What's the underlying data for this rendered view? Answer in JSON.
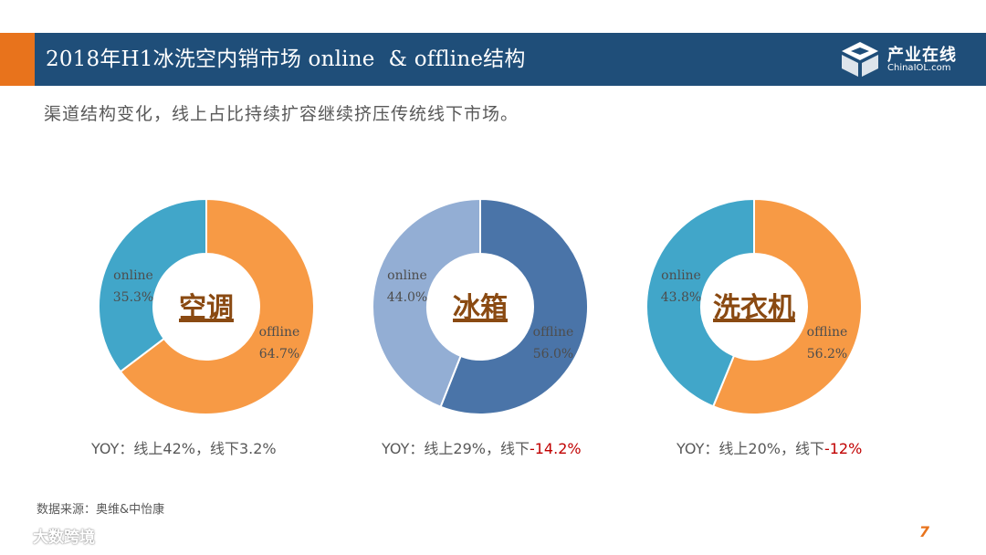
{
  "header": {
    "title": "2018年H1冰洗空内销市场 online  & offline结构",
    "logo_text_cn": "产业在线",
    "logo_text_en": "ChinaIOL.com"
  },
  "subtitle": "渠道结构变化，线上占比持续扩容继续挤压传统线下市场。",
  "colors": {
    "header": "#1f4e79",
    "accent": "#e8731c",
    "negative": "#c00000"
  },
  "chart_data": [
    {
      "type": "pie",
      "donut": true,
      "center_label": "空调",
      "slices": [
        {
          "label": "online",
          "value": 35.3,
          "display": "35.3%",
          "color": "#41a6c9"
        },
        {
          "label": "offline",
          "value": 64.7,
          "display": "64.7%",
          "color": "#f79a45"
        }
      ],
      "yoy": {
        "prefix": "YOY：线上42%，线下",
        "value": "3.2%",
        "negative": false
      }
    },
    {
      "type": "pie",
      "donut": true,
      "center_label": "冰箱",
      "slices": [
        {
          "label": "online",
          "value": 44.0,
          "display": "44.0%",
          "color": "#93aed4"
        },
        {
          "label": "offline",
          "value": 56.0,
          "display": "56.0%",
          "color": "#4a74a8"
        }
      ],
      "yoy": {
        "prefix": "YOY：线上29%，线下",
        "value": "-14.2%",
        "negative": true
      }
    },
    {
      "type": "pie",
      "donut": true,
      "center_label": "洗衣机",
      "slices": [
        {
          "label": "online",
          "value": 43.8,
          "display": "43.8%",
          "color": "#41a6c9"
        },
        {
          "label": "offline",
          "value": 56.2,
          "display": "56.2%",
          "color": "#f79a45"
        }
      ],
      "yoy": {
        "prefix": "YOY：线上20%，线下",
        "value": "-12%",
        "negative": true
      }
    }
  ],
  "footer": {
    "source": "数据来源：奥维&中怡康",
    "page_number": "7",
    "watermark": "大数跨境"
  }
}
